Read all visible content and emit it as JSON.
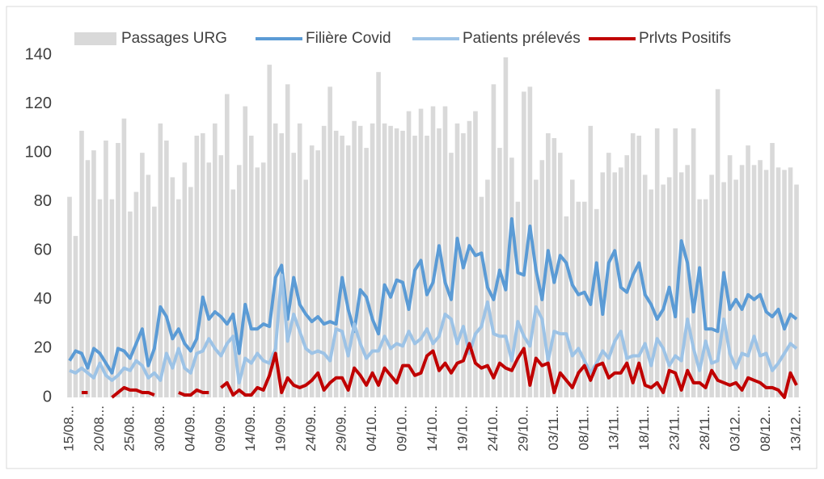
{
  "chart_data": {
    "type": "bar-line",
    "categories": [
      "15/08...",
      null,
      null,
      null,
      null,
      "20/08...",
      null,
      null,
      null,
      null,
      "25/08...",
      null,
      null,
      null,
      null,
      "30/08...",
      null,
      null,
      null,
      null,
      "04/09...",
      null,
      null,
      null,
      null,
      "09/09...",
      null,
      null,
      null,
      null,
      "14/09...",
      null,
      null,
      null,
      null,
      "19/09...",
      null,
      null,
      null,
      null,
      "24/09...",
      null,
      null,
      null,
      null,
      "29/09...",
      null,
      null,
      null,
      null,
      "04/10...",
      null,
      null,
      null,
      null,
      "09/10...",
      null,
      null,
      null,
      null,
      "14/10...",
      null,
      null,
      null,
      null,
      "19/10...",
      null,
      null,
      null,
      null,
      "24/10...",
      null,
      null,
      null,
      null,
      "29/10...",
      null,
      null,
      null,
      null,
      "03/11...",
      null,
      null,
      null,
      null,
      "08/11...",
      null,
      null,
      null,
      null,
      "13/11...",
      null,
      null,
      null,
      null,
      "18/11...",
      null,
      null,
      null,
      null,
      "23/11...",
      null,
      null,
      null,
      null,
      "28/11...",
      null,
      null,
      null,
      null,
      "03/12...",
      null,
      null,
      null,
      null,
      "08/12...",
      null,
      null,
      null,
      null,
      "13/12..."
    ],
    "series": [
      {
        "name": "Passages URG",
        "kind": "bar",
        "color": "#d9d9d9",
        "values": [
          82,
          66,
          109,
          97,
          101,
          81,
          105,
          81,
          104,
          114,
          76,
          84,
          100,
          91,
          78,
          112,
          105,
          90,
          81,
          96,
          86,
          107,
          108,
          96,
          112,
          99,
          124,
          85,
          95,
          119,
          107,
          94,
          96,
          136,
          112,
          108,
          128,
          100,
          112,
          89,
          103,
          101,
          111,
          127,
          109,
          107,
          103,
          113,
          111,
          102,
          112,
          133,
          112,
          111,
          110,
          109,
          117,
          107,
          118,
          107,
          119,
          110,
          119,
          100,
          112,
          108,
          113,
          117,
          82,
          89,
          128,
          102,
          139,
          98,
          80,
          125,
          127,
          89,
          97,
          108,
          106,
          100,
          74,
          89,
          80,
          80,
          111,
          77,
          92,
          100,
          92,
          94,
          99,
          108,
          107,
          91,
          85,
          110,
          87,
          90,
          110,
          92,
          95,
          110,
          81,
          81,
          91,
          126,
          88,
          99,
          89,
          95,
          103,
          95,
          97,
          93,
          104,
          94,
          93,
          94,
          87
        ]
      },
      {
        "name": "Filière Covid",
        "kind": "line",
        "color": "#5b9bd5",
        "values": [
          15,
          19,
          18,
          12,
          20,
          18,
          14,
          10,
          20,
          19,
          16,
          22,
          28,
          13,
          20,
          37,
          33,
          24,
          28,
          22,
          19,
          24,
          41,
          32,
          35,
          33,
          30,
          34,
          18,
          38,
          28,
          28,
          30,
          29,
          49,
          54,
          32,
          49,
          38,
          34,
          31,
          33,
          30,
          31,
          30,
          49,
          36,
          27,
          44,
          41,
          32,
          26,
          46,
          41,
          48,
          47,
          36,
          52,
          56,
          42,
          47,
          62,
          47,
          40,
          65,
          53,
          62,
          58,
          59,
          45,
          40,
          52,
          44,
          73,
          51,
          50,
          70,
          52,
          40,
          60,
          47,
          58,
          55,
          46,
          42,
          43,
          38,
          55,
          34,
          55,
          60,
          45,
          43,
          50,
          55,
          42,
          38,
          32,
          36,
          45,
          33,
          64,
          55,
          35,
          53,
          28,
          28,
          27,
          51,
          36,
          40,
          36,
          42,
          40,
          42,
          35,
          33,
          36,
          28,
          34,
          32
        ]
      },
      {
        "name": "Patients prélevés",
        "kind": "line",
        "color": "#9dc3e6",
        "values": [
          11,
          10,
          12,
          10,
          8,
          14,
          9,
          7,
          9,
          12,
          11,
          15,
          13,
          8,
          10,
          7,
          18,
          12,
          20,
          12,
          10,
          18,
          19,
          24,
          20,
          17,
          22,
          25,
          6,
          16,
          14,
          18,
          15,
          14,
          20,
          50,
          23,
          34,
          27,
          20,
          18,
          19,
          18,
          15,
          28,
          27,
          17,
          30,
          22,
          16,
          19,
          19,
          25,
          20,
          22,
          21,
          27,
          22,
          24,
          28,
          22,
          25,
          34,
          32,
          22,
          29,
          18,
          26,
          29,
          39,
          26,
          25,
          25,
          15,
          31,
          25,
          21,
          37,
          32,
          15,
          27,
          26,
          26,
          17,
          20,
          15,
          10,
          14,
          19,
          16,
          23,
          27,
          16,
          17,
          17,
          22,
          13,
          24,
          20,
          13,
          17,
          15,
          32,
          20,
          11,
          23,
          14,
          15,
          32,
          18,
          12,
          18,
          17,
          25,
          17,
          18,
          11,
          14,
          18,
          22,
          20
        ]
      },
      {
        "name": "Prlvts Positifs",
        "kind": "line",
        "color": "#c00000",
        "values": [
          null,
          null,
          2,
          2,
          null,
          null,
          null,
          0,
          2,
          4,
          3,
          3,
          2,
          2,
          1,
          null,
          null,
          null,
          2,
          1,
          1,
          3,
          2,
          2,
          null,
          4,
          6,
          1,
          3,
          1,
          1,
          4,
          3,
          9,
          18,
          2,
          8,
          5,
          4,
          5,
          7,
          10,
          3,
          6,
          8,
          8,
          3,
          12,
          9,
          5,
          10,
          5,
          12,
          9,
          6,
          13,
          13,
          9,
          10,
          17,
          19,
          11,
          14,
          10,
          14,
          15,
          22,
          14,
          12,
          13,
          8,
          14,
          12,
          11,
          16,
          20,
          5,
          16,
          13,
          14,
          2,
          10,
          7,
          4,
          10,
          13,
          7,
          13,
          14,
          8,
          10,
          10,
          14,
          6,
          14,
          5,
          4,
          6,
          2,
          11,
          10,
          3,
          11,
          6,
          6,
          4,
          11,
          7,
          6,
          5,
          6,
          3,
          8,
          7,
          6,
          4,
          4,
          3,
          0,
          10,
          5
        ]
      }
    ],
    "ylim": [
      0,
      140
    ],
    "yticks": [
      0,
      20,
      40,
      60,
      80,
      100,
      120,
      140
    ],
    "grid": false,
    "legend": "top"
  }
}
